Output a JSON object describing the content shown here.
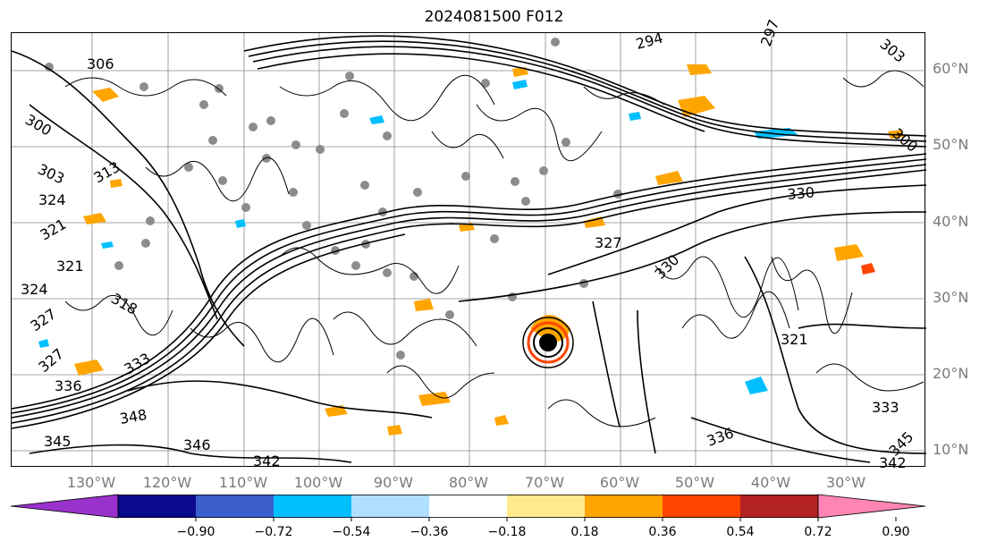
{
  "title": "2024081500 F012",
  "lat_labels": [
    "60°N",
    "50°N",
    "40°N",
    "30°N",
    "20°N",
    "10°N"
  ],
  "lon_labels": [
    "130°W",
    "120°W",
    "110°W",
    "100°W",
    "90°W",
    "80°W",
    "70°W",
    "60°W",
    "50°W",
    "40°W",
    "30°W"
  ],
  "contour_labels": [
    "306",
    "300",
    "303",
    "313",
    "324",
    "321",
    "321",
    "324",
    "318",
    "327",
    "327",
    "333",
    "336",
    "348",
    "345",
    "346",
    "342",
    "294",
    "297",
    "300",
    "303",
    "330",
    "330",
    "327",
    "321",
    "333",
    "336",
    "342",
    "345"
  ],
  "colorbar": {
    "colors": [
      "#9932CC",
      "#0a0a8c",
      "#3a5fcd",
      "#00bfff",
      "#b0e0ff",
      "#ffffff",
      "#ffeb8c",
      "#ffa500",
      "#ff4500",
      "#b22222",
      "#ff85b4"
    ],
    "ticks": [
      "−0.90",
      "−0.72",
      "−0.54",
      "−0.36",
      "−0.18",
      "0.18",
      "0.36",
      "0.54",
      "0.72",
      "0.90"
    ]
  }
}
